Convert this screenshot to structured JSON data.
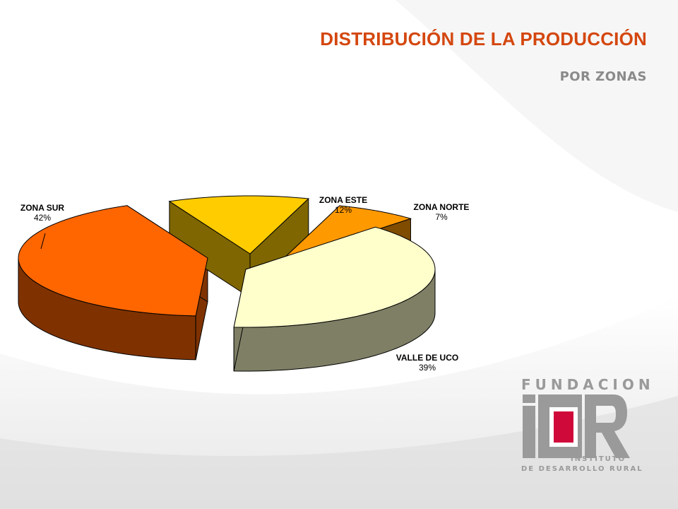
{
  "header": {
    "title": "DISTRIBUCIÓN DE LA PRODUCCIÓN",
    "subtitle": "POR ZONAS"
  },
  "colors": {
    "title": "#d4470f",
    "subtitle": "#8a8a8a",
    "zona_sur_top": "#ff6600",
    "zona_sur_side": "#7f3200",
    "zona_este_top": "#ffcc00",
    "zona_este_side": "#7f6600",
    "zona_norte_top": "#ff9900",
    "zona_norte_side": "#7f4c00",
    "valle_de_uco_top": "#ffffcc",
    "valle_de_uco_side": "#7f7f66"
  },
  "chart_data": {
    "type": "pie",
    "style": "3d-exploded",
    "series": [
      {
        "name": "ZONA SUR",
        "value": 42,
        "label": "42%"
      },
      {
        "name": "ZONA ESTE",
        "value": 12,
        "label": "12%"
      },
      {
        "name": "ZONA NORTE",
        "value": 7,
        "label": "7%"
      },
      {
        "name": "VALLE DE UCO",
        "value": 39,
        "label": "39%"
      }
    ]
  },
  "logo": {
    "top_text": "FUNDACION",
    "mark_text": "iDR",
    "line1": "INSTITUTO",
    "line2": "DE DESARROLLO RURAL"
  }
}
